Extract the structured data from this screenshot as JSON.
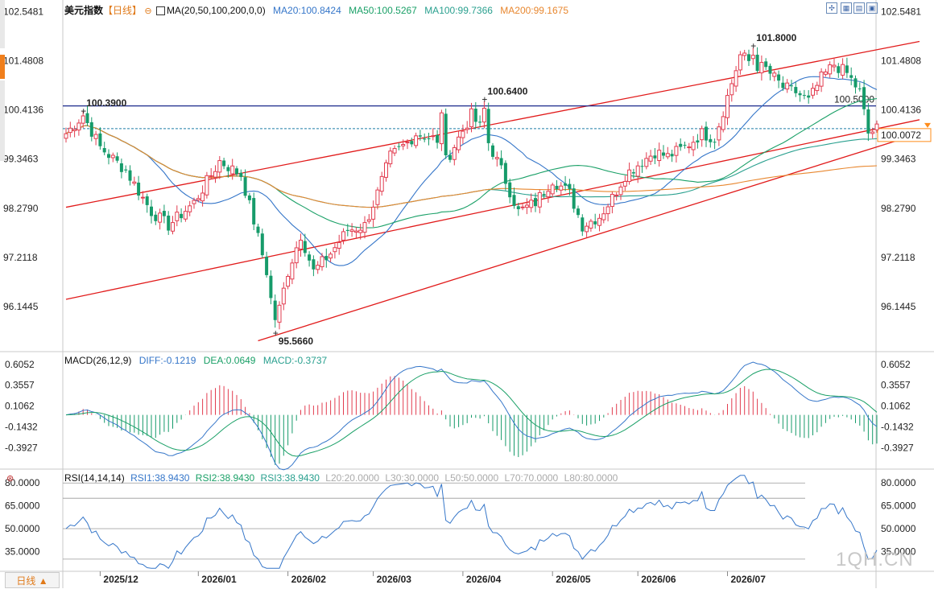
{
  "header": {
    "instrument": "美元指数",
    "period_tag": "【日线】",
    "indicator": "MA(20,50,100,200,0,0)",
    "ma20": "MA20:100.8424",
    "ma50": "MA50:100.5267",
    "ma100": "MA100:99.7366",
    "ma200": "MA200:99.1675"
  },
  "macd_header": {
    "label": "MACD(26,12,9)",
    "diff": "DIFF:-0.1219",
    "dea": "DEA:0.0649",
    "macd": "MACD:-0.3737"
  },
  "rsi_header": {
    "label": "RSI(14,14,14)",
    "rsi1": "RSI1:38.9430",
    "rsi2": "RSI2:38.9430",
    "rsi3": "RSI3:38.9430",
    "l20": "L20:20.0000",
    "l30": "L30:30.0000",
    "l50": "L50:50.0000",
    "l70": "L70:70.0000",
    "l80": "L80:80.0000"
  },
  "period_button": "日线 ▲",
  "watermark": "1QH.CN",
  "colors": {
    "up": "#e23c4f",
    "down": "#169b6a",
    "ma20": "#3576c9",
    "ma50": "#1aa067",
    "ma100": "#2aa08f",
    "ma200": "#e8872f",
    "channel": "#e11a1a",
    "resistance": "#1c2a8c",
    "current": "#1f7ea6",
    "marker": "#ff8c1a"
  },
  "chart_data": [
    {
      "type": "candlestick",
      "title": "美元指数",
      "yticks": [
        102.5481,
        101.4808,
        100.4136,
        99.3463,
        98.279,
        97.2118,
        96.1445
      ],
      "ylim": [
        95.2,
        102.8
      ],
      "xticks": [
        "2025/12",
        "2026/01",
        "2026/02",
        "2026/03",
        "2026/04",
        "2026/05",
        "2026/06",
        "2026/07"
      ],
      "annotations": [
        {
          "text": "100.3900",
          "value": 100.39
        },
        {
          "text": "100.6400",
          "value": 100.64
        },
        {
          "text": "101.8000",
          "value": 101.8
        },
        {
          "text": "95.5660",
          "value": 95.566
        }
      ],
      "horizontal_line": {
        "value": 100.5,
        "label": "100.5000"
      },
      "current_price": {
        "value": 100.0072,
        "label": "100.0072"
      },
      "channel_lines": [
        {
          "points": [
            [
              0,
              98.3
            ],
            [
              200,
              101.9
            ]
          ]
        },
        {
          "points": [
            [
              0,
              96.3
            ],
            [
              200,
              100.2
            ]
          ]
        },
        {
          "points": [
            [
              45,
              95.4
            ],
            [
              200,
              99.9
            ]
          ]
        }
      ],
      "close_anchors": [
        [
          0,
          99.9
        ],
        [
          4,
          100.3
        ],
        [
          8,
          99.6
        ],
        [
          14,
          99.1
        ],
        [
          20,
          98.2
        ],
        [
          24,
          97.9
        ],
        [
          30,
          98.4
        ],
        [
          36,
          99.3
        ],
        [
          41,
          99.0
        ],
        [
          44,
          98.0
        ],
        [
          47,
          96.9
        ],
        [
          49,
          95.7
        ],
        [
          52,
          96.9
        ],
        [
          55,
          97.7
        ],
        [
          58,
          96.9
        ],
        [
          62,
          97.3
        ],
        [
          66,
          97.8
        ],
        [
          70,
          97.9
        ],
        [
          73,
          98.6
        ],
        [
          76,
          99.4
        ],
        [
          80,
          99.7
        ],
        [
          82,
          99.9
        ],
        [
          86,
          99.8
        ],
        [
          89,
          99.3
        ],
        [
          92,
          99.8
        ],
        [
          95,
          100.3
        ],
        [
          98,
          99.9
        ],
        [
          102,
          99.1
        ],
        [
          106,
          98.2
        ],
        [
          110,
          98.4
        ],
        [
          114,
          98.9
        ],
        [
          118,
          98.6
        ],
        [
          121,
          97.9
        ],
        [
          125,
          98.1
        ],
        [
          128,
          98.5
        ],
        [
          131,
          99.0
        ],
        [
          135,
          99.3
        ],
        [
          138,
          99.5
        ],
        [
          141,
          99.4
        ],
        [
          145,
          99.6
        ],
        [
          149,
          99.9
        ],
        [
          152,
          99.8
        ],
        [
          155,
          100.7
        ],
        [
          158,
          101.6
        ],
        [
          161,
          101.4
        ],
        [
          164,
          101.3
        ],
        [
          168,
          100.9
        ],
        [
          171,
          100.8
        ],
        [
          174,
          100.6
        ],
        [
          177,
          101.1
        ],
        [
          180,
          101.4
        ],
        [
          183,
          101.2
        ],
        [
          186,
          100.8
        ],
        [
          188,
          99.9
        ],
        [
          190,
          100.0
        ]
      ],
      "bars": 191,
      "ma_series": [
        {
          "name": "MA20",
          "period": 20
        },
        {
          "name": "MA50",
          "period": 50
        },
        {
          "name": "MA100",
          "period": 100
        },
        {
          "name": "MA200",
          "period": 200
        }
      ]
    },
    {
      "type": "bar",
      "title": "MACD(26,12,9)",
      "yticks": [
        0.6052,
        0.3557,
        0.1062,
        -0.1432,
        -0.3927
      ],
      "ylim": [
        -0.66,
        0.72
      ],
      "series": [
        {
          "name": "DIFF",
          "last": -0.1219
        },
        {
          "name": "DEA",
          "last": 0.0649
        },
        {
          "name": "MACD",
          "last": -0.3737
        }
      ]
    },
    {
      "type": "line",
      "title": "RSI(14,14,14)",
      "yticks": [
        80.0,
        65.0,
        50.0,
        35.0
      ],
      "ylim": [
        22,
        87
      ],
      "levels": [
        20,
        30,
        50,
        70,
        80
      ],
      "series": [
        {
          "name": "RSI1",
          "last": 38.943
        },
        {
          "name": "RSI2",
          "last": 38.943
        },
        {
          "name": "RSI3",
          "last": 38.943
        }
      ]
    }
  ]
}
